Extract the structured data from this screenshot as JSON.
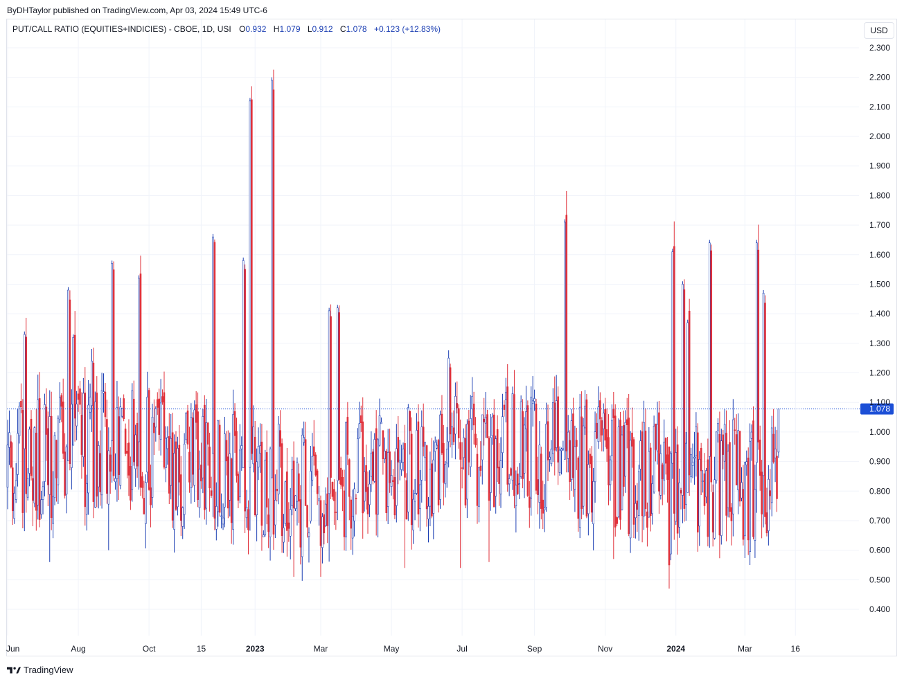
{
  "header": {
    "byline": "ByDHTaylor published on TradingView.com, Apr 03, 2024 15:49 UTC-6"
  },
  "legend": {
    "symbol": "PUT/CALL RATIO (EQUITIES+INDICIES) - CBOE, 1D, USI",
    "open_label": "O",
    "open": "0.932",
    "high_label": "H",
    "high": "1.079",
    "low_label": "L",
    "low": "0.912",
    "close_label": "C",
    "close": "1.078",
    "change": "+0.123 (+12.83%)"
  },
  "currency_button": "USD",
  "footer": {
    "brand": "TradingView"
  },
  "colors": {
    "up": "#1c3fb3",
    "down": "#e0303a",
    "price_label_bg": "#1c4fd6",
    "grid": "#f0f3fa"
  },
  "chart_data": {
    "type": "candlestick",
    "y_axis": {
      "min": 0.3,
      "max": 2.35,
      "position": "right",
      "ticks": [
        "2.300",
        "2.200",
        "2.100",
        "2.000",
        "1.900",
        "1.800",
        "1.700",
        "1.600",
        "1.500",
        "1.400",
        "1.300",
        "1.200",
        "1.100",
        "1.000",
        "0.900",
        "0.800",
        "0.700",
        "0.600",
        "0.500",
        "0.400"
      ]
    },
    "x_axis": {
      "ticks": [
        {
          "label": "Jun",
          "bar": 0,
          "bold": false
        },
        {
          "label": "Aug",
          "bar": 42,
          "bold": false
        },
        {
          "label": "Oct",
          "bar": 84,
          "bold": false
        },
        {
          "label": "15",
          "bar": 115,
          "bold": false
        },
        {
          "label": "2023",
          "bar": 147,
          "bold": true
        },
        {
          "label": "Mar",
          "bar": 186,
          "bold": false
        },
        {
          "label": "May",
          "bar": 228,
          "bold": false
        },
        {
          "label": "Jul",
          "bar": 270,
          "bold": false
        },
        {
          "label": "Sep",
          "bar": 313,
          "bold": false
        },
        {
          "label": "Nov",
          "bar": 355,
          "bold": false
        },
        {
          "label": "2024",
          "bar": 397,
          "bold": true
        },
        {
          "label": "Mar",
          "bar": 438,
          "bold": false
        },
        {
          "label": "16",
          "bar": 468,
          "bold": false
        }
      ]
    },
    "last_price": 1.078,
    "last_price_label": "1.078",
    "grid": true,
    "bars_total": 459,
    "anchors": [
      {
        "i": 10,
        "close": 1.33
      },
      {
        "i": 36,
        "close": 1.48
      },
      {
        "i": 39,
        "close": 1.32
      },
      {
        "i": 50,
        "close": 1.24
      },
      {
        "i": 62,
        "close": 1.57
      },
      {
        "i": 78,
        "close": 1.52
      },
      {
        "i": 122,
        "close": 1.66
      },
      {
        "i": 140,
        "close": 1.58
      },
      {
        "i": 144,
        "close": 2.12
      },
      {
        "i": 157,
        "close": 2.19
      },
      {
        "i": 191,
        "close": 1.41
      },
      {
        "i": 196,
        "close": 1.42
      },
      {
        "i": 262,
        "close": 1.25
      },
      {
        "i": 331,
        "close": 1.71
      },
      {
        "i": 393,
        "close": 0.47
      },
      {
        "i": 395,
        "close": 1.61
      },
      {
        "i": 401,
        "close": 1.5
      },
      {
        "i": 404,
        "close": 1.37
      },
      {
        "i": 417,
        "close": 1.64
      },
      {
        "i": 445,
        "close": 1.64
      },
      {
        "i": 449,
        "close": 1.47
      },
      {
        "i": 458,
        "close": 1.078
      }
    ],
    "low_extremes": [
      {
        "i": 170,
        "low": 0.51
      },
      {
        "i": 186,
        "low": 0.51
      },
      {
        "i": 236,
        "low": 0.54
      },
      {
        "i": 269,
        "low": 0.54
      },
      {
        "i": 286,
        "low": 0.56
      },
      {
        "i": 360,
        "low": 0.57
      },
      {
        "i": 25,
        "low": 0.56
      },
      {
        "i": 60,
        "low": 0.6
      }
    ]
  }
}
